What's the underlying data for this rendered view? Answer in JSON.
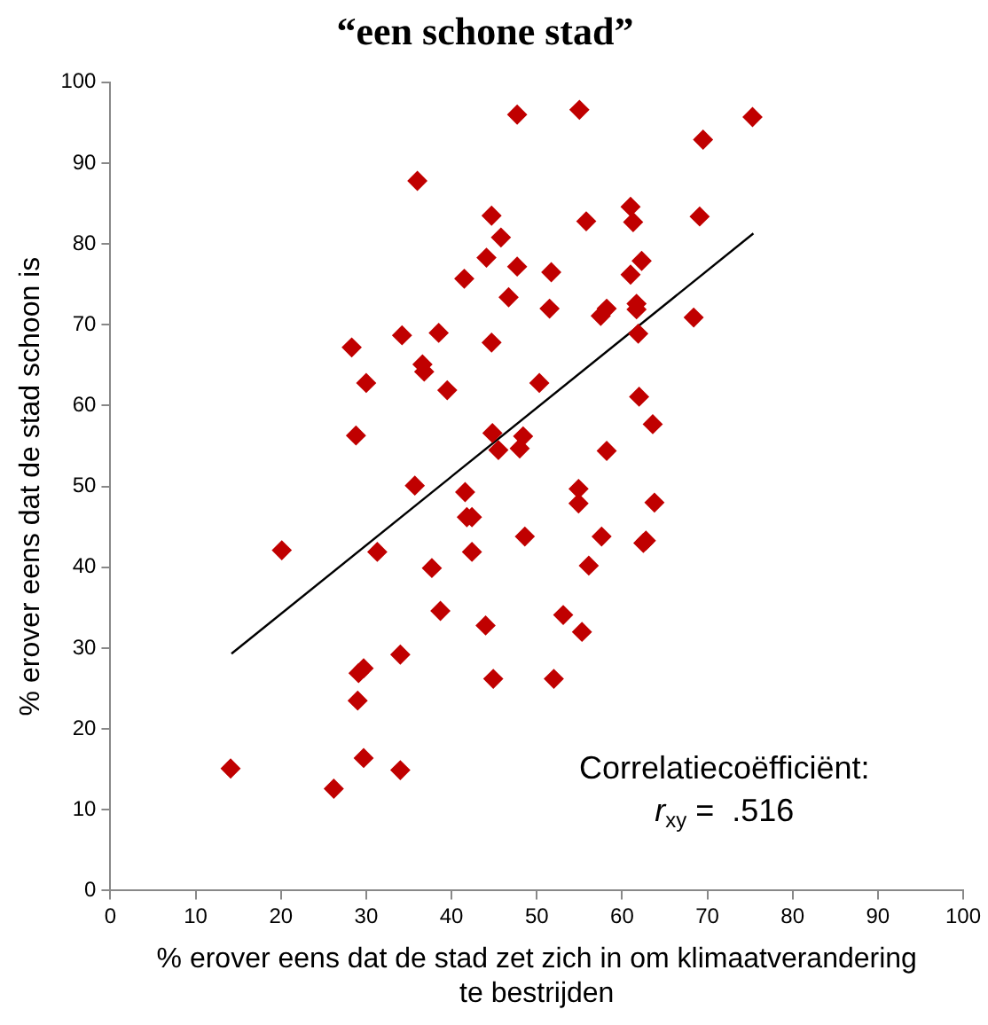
{
  "chart_data": {
    "type": "scatter",
    "title": "“een schone stad”",
    "xlabel": "% erover eens dat de stad zet zich in om klimaatverandering te bestrijden",
    "ylabel": "% erover eens dat de stad schoon is",
    "xlim": [
      0,
      100
    ],
    "xticks": [
      0,
      10,
      20,
      30,
      40,
      50,
      60,
      70,
      80,
      90,
      100
    ],
    "ylim": [
      0,
      100
    ],
    "yticks": [
      0,
      10,
      20,
      30,
      40,
      50,
      60,
      70,
      80,
      90,
      100
    ],
    "grid": false,
    "legend": false,
    "marker": "diamond",
    "series": [
      {
        "color": "#c00000",
        "x": [
          47.7,
          36.0,
          44.7,
          45.8,
          44.1,
          47.7,
          51.7,
          41.5,
          46.7,
          51.5,
          28.3,
          34.2,
          38.5,
          44.7,
          36.6,
          36.8,
          30.0,
          39.5,
          50.3,
          28.8,
          44.8,
          45.5,
          48.4,
          48.0,
          35.7,
          41.6,
          55.0,
          75.3,
          69.5,
          61.0,
          61.3,
          55.8,
          69.1,
          62.3,
          61.0,
          58.2,
          57.5,
          61.7,
          61.7,
          68.4,
          61.9,
          62.0,
          63.6,
          58.2,
          54.9,
          54.9,
          63.8,
          41.8,
          42.4,
          48.6,
          31.3,
          42.4,
          37.7,
          38.7,
          44.0,
          53.1,
          20.1,
          34.0,
          29.7,
          29.1,
          29.0,
          44.9,
          52.0,
          14.1,
          29.7,
          34.0,
          26.2,
          57.6,
          62.8,
          62.5,
          56.1,
          55.3
        ],
        "values": [
          96.0,
          87.8,
          83.5,
          80.8,
          78.3,
          77.2,
          76.5,
          75.7,
          73.4,
          72.0,
          67.2,
          68.7,
          69.0,
          67.8,
          65.1,
          64.2,
          62.8,
          61.9,
          62.8,
          56.3,
          56.6,
          54.5,
          56.2,
          54.7,
          50.1,
          49.3,
          96.6,
          95.7,
          92.9,
          84.6,
          82.7,
          82.8,
          83.4,
          77.9,
          76.2,
          72.0,
          71.1,
          72.6,
          71.9,
          70.9,
          68.9,
          61.1,
          57.7,
          54.4,
          49.7,
          47.9,
          48.0,
          46.2,
          46.2,
          43.8,
          41.9,
          41.9,
          39.9,
          34.6,
          32.8,
          34.1,
          42.1,
          29.2,
          27.5,
          26.9,
          23.5,
          26.2,
          26.2,
          15.1,
          16.4,
          14.9,
          12.6,
          43.8,
          43.3,
          43.0,
          40.2,
          32.0
        ]
      },
      {
        "type": "line",
        "color": "#000000",
        "marker": "none",
        "x": [
          14.2,
          75.4
        ],
        "values": [
          29.3,
          81.3
        ]
      }
    ],
    "annotations": [
      "Correlatiecoëfficiënt:",
      "r$_{xy}$ =  .516"
    ]
  }
}
